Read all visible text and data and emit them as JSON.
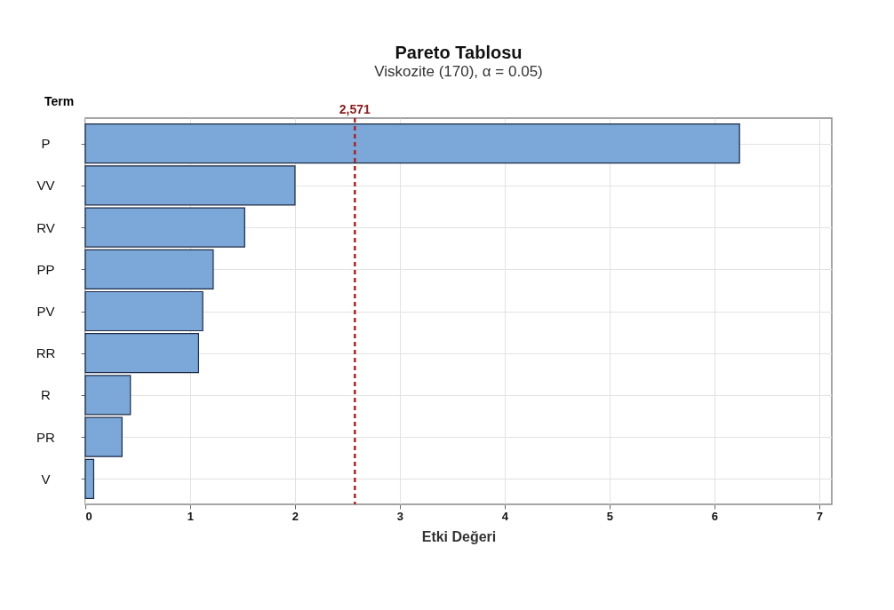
{
  "chart_data": {
    "type": "bar",
    "orientation": "horizontal",
    "title": "Pareto Tablosu",
    "subtitle": "Viskozite (170), α = 0.05)",
    "xlabel": "Etki Değeri",
    "ylabel": "Term",
    "categories": [
      "P",
      "VV",
      "RV",
      "PP",
      "PV",
      "RR",
      "R",
      "PR",
      "V"
    ],
    "values": [
      6.24,
      2.0,
      1.52,
      1.22,
      1.12,
      1.08,
      0.43,
      0.35,
      0.08
    ],
    "color": "#7ba7d9",
    "xlim": [
      0,
      7.12
    ],
    "xticks": [
      0,
      1,
      2,
      3,
      4,
      5,
      6,
      7
    ],
    "ref_lines": [
      {
        "axis": "x",
        "value": 2.571,
        "label": "2,571",
        "color": "#b22222",
        "line_style": "dashed"
      }
    ],
    "grid": true
  }
}
